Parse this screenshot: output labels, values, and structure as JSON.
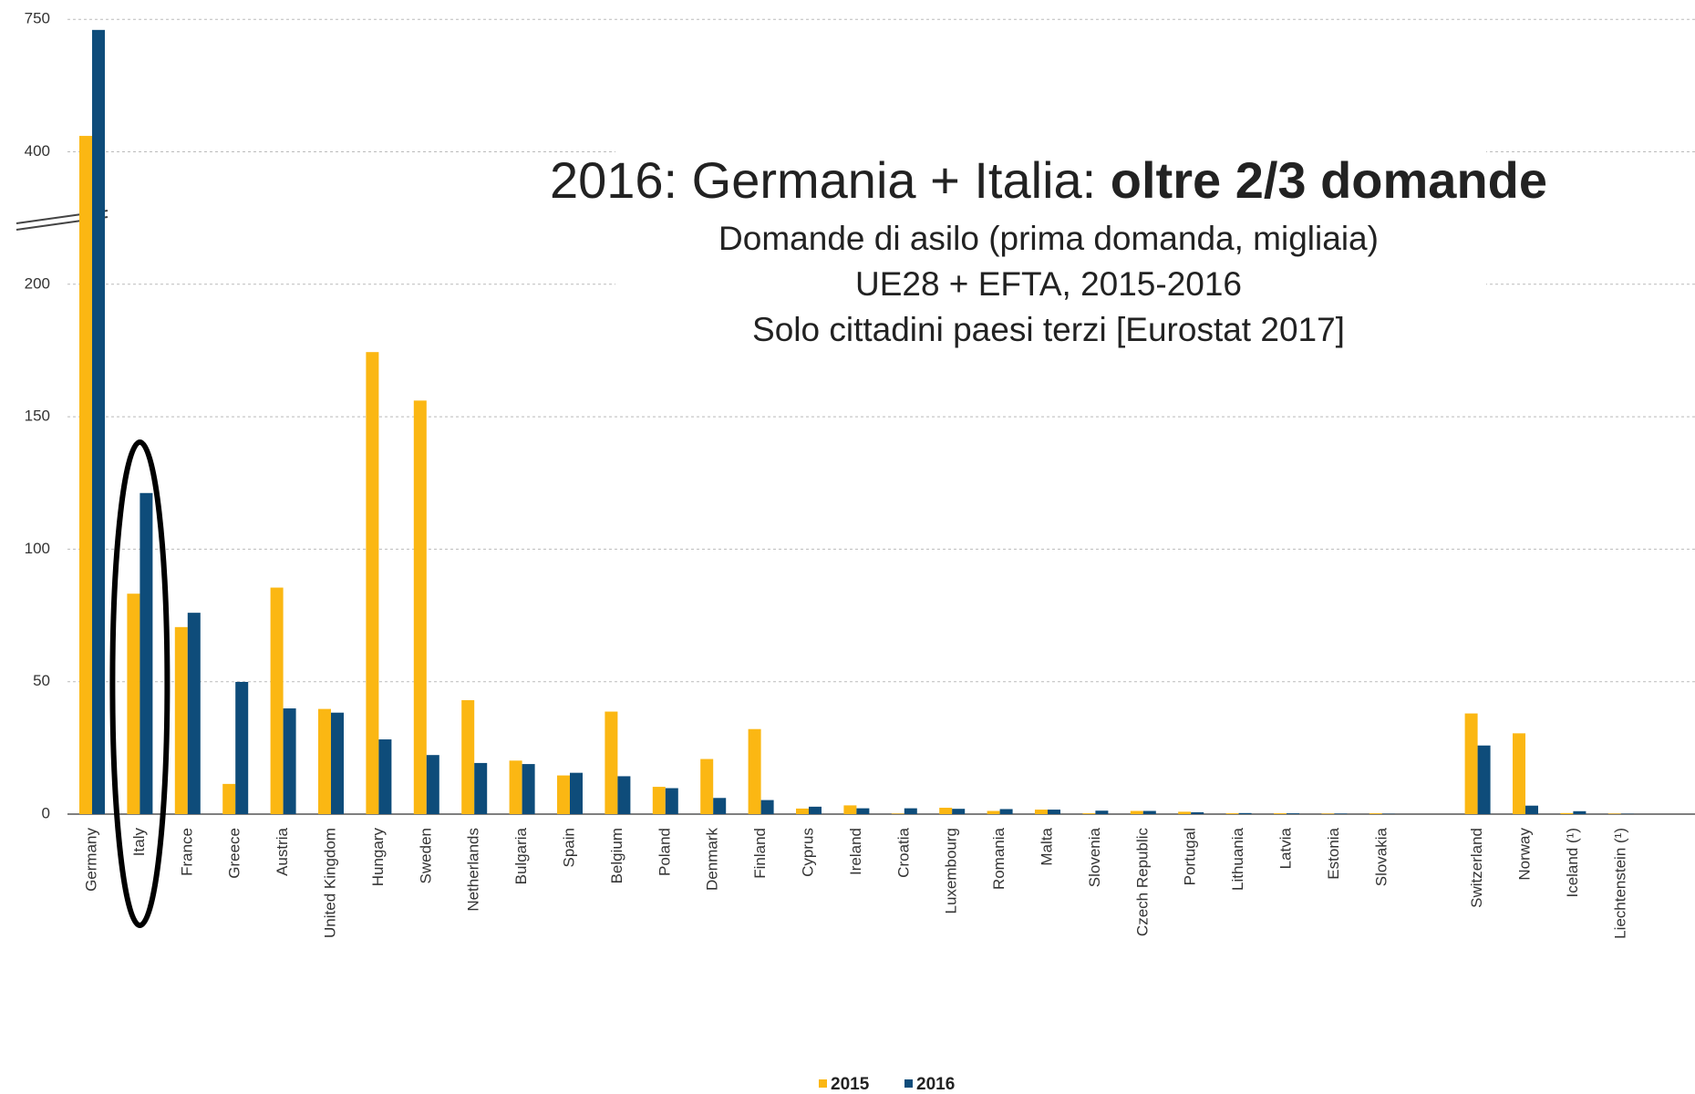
{
  "chart_data": {
    "type": "bar",
    "title": "2016: Germania + Italia:",
    "title_bold": "oltre 2/3 domande",
    "subtitle": [
      "Domande di asilo (prima domanda, migliaia)",
      "UE28 + EFTA, 2015-2016",
      "Solo cittadini paesi terzi [Eurostat 2017]"
    ],
    "categories": [
      "Germany",
      "Italy",
      "France",
      "Greece",
      "Austria",
      "United Kingdom",
      "Hungary",
      "Sweden",
      "Netherlands",
      "Bulgaria",
      "Spain",
      "Belgium",
      "Poland",
      "Denmark",
      "Finland",
      "Cyprus",
      "Ireland",
      "Croatia",
      "Luxembourg",
      "Romania",
      "Malta",
      "Slovenia",
      "Czech Republic",
      "Portugal",
      "Lithuania",
      "Latvia",
      "Estonia",
      "Slovakia",
      null,
      "Switzerland",
      "Norway",
      "Iceland (¹)",
      "Liechtenstein (¹)"
    ],
    "series": [
      {
        "name": "2015",
        "color": "#fbb713",
        "values": [
          442,
          83.2,
          70.6,
          11.4,
          85.5,
          39.7,
          174.4,
          156.1,
          43,
          20.2,
          14.6,
          38.7,
          10.3,
          20.8,
          32.1,
          2.1,
          3.3,
          0.2,
          2.4,
          1.2,
          1.7,
          0.3,
          1.2,
          0.9,
          0.3,
          0.3,
          0.2,
          0.3,
          null,
          38,
          30.5,
          0.4,
          0.2
        ]
      },
      {
        "name": "2016",
        "color": "#0e4c7a",
        "values": [
          722,
          121.2,
          76,
          49.9,
          39.9,
          38.3,
          28.2,
          22.3,
          19.3,
          18.9,
          15.6,
          14.3,
          9.8,
          6.1,
          5.3,
          2.8,
          2.2,
          2.2,
          2.0,
          1.9,
          1.7,
          1.3,
          1.2,
          0.7,
          0.4,
          0.3,
          0.2,
          0.1,
          null,
          25.9,
          3.2,
          1.1,
          0.1
        ]
      }
    ],
    "ylim": [
      0,
      750
    ],
    "yticks": [
      0,
      50,
      100,
      150,
      200,
      400,
      750
    ],
    "grid": true
  }
}
